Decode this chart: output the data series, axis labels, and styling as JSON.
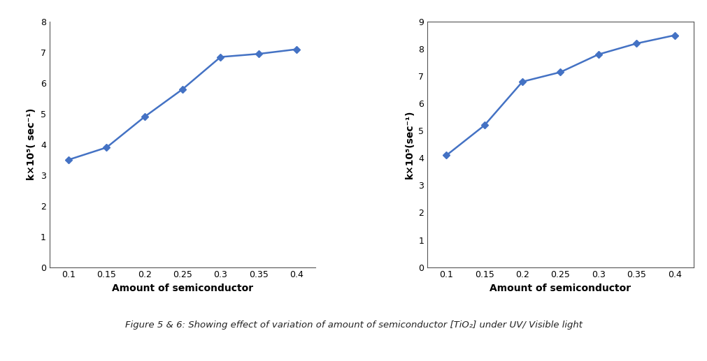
{
  "plot1": {
    "x": [
      0.1,
      0.15,
      0.2,
      0.25,
      0.3,
      0.35,
      0.4
    ],
    "y": [
      3.5,
      3.9,
      4.9,
      5.8,
      6.85,
      6.95,
      7.1
    ],
    "ylabel": "k×10⁵( sec⁻¹)",
    "xlabel": "Amount of semiconductor",
    "ylim": [
      0,
      8
    ],
    "yticks": [
      0,
      1,
      2,
      3,
      4,
      5,
      6,
      7,
      8
    ],
    "xticks": [
      0.1,
      0.15,
      0.2,
      0.25,
      0.3,
      0.35,
      0.4
    ],
    "has_top_right_border": false
  },
  "plot2": {
    "x": [
      0.1,
      0.15,
      0.2,
      0.25,
      0.3,
      0.35,
      0.4
    ],
    "y": [
      4.1,
      5.2,
      6.8,
      7.15,
      7.8,
      8.2,
      8.5
    ],
    "ylabel": "k×10⁵(sec⁻¹)",
    "xlabel": "Amount of semiconductor",
    "ylim": [
      0,
      9
    ],
    "yticks": [
      0,
      1,
      2,
      3,
      4,
      5,
      6,
      7,
      8,
      9
    ],
    "xticks": [
      0.1,
      0.15,
      0.2,
      0.25,
      0.3,
      0.35,
      0.4
    ],
    "has_top_right_border": true
  },
  "caption": "Figure 5 & 6: Showing effect of variation of amount of semiconductor [TiO₂] under UV/ Visible light",
  "line_color": "#4472C4",
  "marker": "D",
  "marker_size": 5,
  "line_width": 1.8,
  "bg_color": "#ffffff",
  "tick_fontsize": 9,
  "label_fontsize": 10,
  "caption_fontsize": 9.5
}
